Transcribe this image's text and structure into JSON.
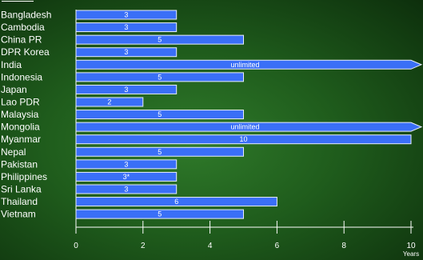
{
  "chart_data": {
    "type": "bar",
    "orientation": "horizontal",
    "categories": [
      "Bangladesh",
      "Cambodia",
      "China PR",
      "DPR Korea",
      "India",
      "Indonesia",
      "Japan",
      "Lao PDR",
      "Malaysia",
      "Mongolia",
      "Myanmar",
      "Nepal",
      "Pakistan",
      "Philippines",
      "Sri Lanka",
      "Thailand",
      "Vietnam"
    ],
    "values": [
      3,
      3,
      5,
      3,
      null,
      5,
      3,
      2,
      5,
      null,
      10,
      5,
      3,
      3,
      3,
      6,
      5
    ],
    "labels": [
      "3",
      "3",
      "5",
      "3",
      "unlimited",
      "5",
      "3",
      "2",
      "5",
      "unlimited",
      "10",
      "5",
      "3",
      "3*",
      "3",
      "6",
      "5"
    ],
    "xlim": [
      0,
      10
    ],
    "xticks": [
      0,
      2,
      4,
      6,
      8,
      10
    ],
    "xlabel": "Years",
    "grid": false,
    "bar_color": "#3a6ff7",
    "bar_outline": "#e8eefc"
  }
}
